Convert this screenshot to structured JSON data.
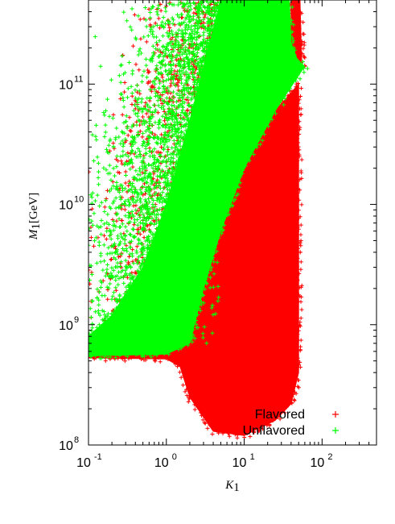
{
  "chart_data": {
    "type": "scatter",
    "title": "",
    "xlabel": {
      "symbol": "K",
      "subscript": "1",
      "unit": ""
    },
    "ylabel": {
      "symbol": "M",
      "subscript": "1",
      "unit": "[GeV]"
    },
    "xscale": "log",
    "yscale": "log",
    "xlim": [
      0.1,
      500
    ],
    "ylim": [
      100000000,
      500000000000
    ],
    "x_ticks": [
      {
        "base": "10",
        "exp": "-1",
        "value": 0.1
      },
      {
        "base": "10",
        "exp": "0",
        "value": 1
      },
      {
        "base": "10",
        "exp": "1",
        "value": 10
      },
      {
        "base": "10",
        "exp": "2",
        "value": 100
      }
    ],
    "y_ticks": [
      {
        "base": "10",
        "exp": "8",
        "value": 100000000
      },
      {
        "base": "10",
        "exp": "9",
        "value": 1000000000
      },
      {
        "base": "10",
        "exp": "10",
        "value": 10000000000
      },
      {
        "base": "10",
        "exp": "11",
        "value": 100000000000
      }
    ],
    "grid": false,
    "marker": "+",
    "legend_position": "bottom-right",
    "series": [
      {
        "name": "Flavored",
        "color": "#ff0000",
        "regions": [
          {
            "kind": "dense",
            "polygon": [
              [
                0.1,
                550000000.0
              ],
              [
                1,
                570000000.0
              ],
              [
                2,
                700000000.0
              ],
              [
                3,
                2000000000.0
              ],
              [
                5,
                6000000000.0
              ],
              [
                10,
                20000000000.0
              ],
              [
                25,
                60000000000.0
              ],
              [
                50,
                100000000000.0
              ],
              [
                50,
                400000000.0
              ],
              [
                40,
                220000000.0
              ],
              [
                25,
                160000000.0
              ],
              [
                10,
                120000000.0
              ],
              [
                4,
                130000000.0
              ],
              [
                2,
                250000000.0
              ],
              [
                1.5,
                450000000.0
              ],
              [
                1,
                520000000.0
              ],
              [
                0.1,
                530000000.0
              ]
            ]
          },
          {
            "kind": "dense",
            "polygon": [
              [
                40,
                140000000000.0
              ],
              [
                55,
                140000000000.0
              ],
              [
                52,
                500000000000.0
              ],
              [
                40,
                500000000000.0
              ]
            ]
          },
          {
            "kind": "sparse",
            "x_range": [
              0.1,
              5
            ],
            "y_range": [
              700000000.0,
              500000000000.0
            ],
            "count": 900
          }
        ]
      },
      {
        "name": "Unflavored",
        "color": "#00ff00",
        "regions": [
          {
            "kind": "dense",
            "polygon": [
              [
                0.1,
                550000000.0
              ],
              [
                1,
                570000000.0
              ],
              [
                2,
                700000000.0
              ],
              [
                3,
                2000000000.0
              ],
              [
                5,
                6000000000.0
              ],
              [
                10,
                20000000000.0
              ],
              [
                25,
                60000000000.0
              ],
              [
                55,
                130000000000.0
              ],
              [
                60,
                140000000000.0
              ],
              [
                48,
                160000000000.0
              ],
              [
                40,
                220000000000.0
              ],
              [
                38,
                500000000000.0
              ],
              [
                5,
                500000000000.0
              ],
              [
                2,
                50000000000.0
              ],
              [
                1,
                10000000000.0
              ],
              [
                0.5,
                3000000000.0
              ],
              [
                0.2,
                1200000000.0
              ],
              [
                0.1,
                800000000.0
              ]
            ]
          },
          {
            "kind": "sparse",
            "x_range": [
              0.1,
              5
            ],
            "y_range": [
              700000000.0,
              500000000000.0
            ],
            "count": 2600
          }
        ]
      }
    ]
  }
}
